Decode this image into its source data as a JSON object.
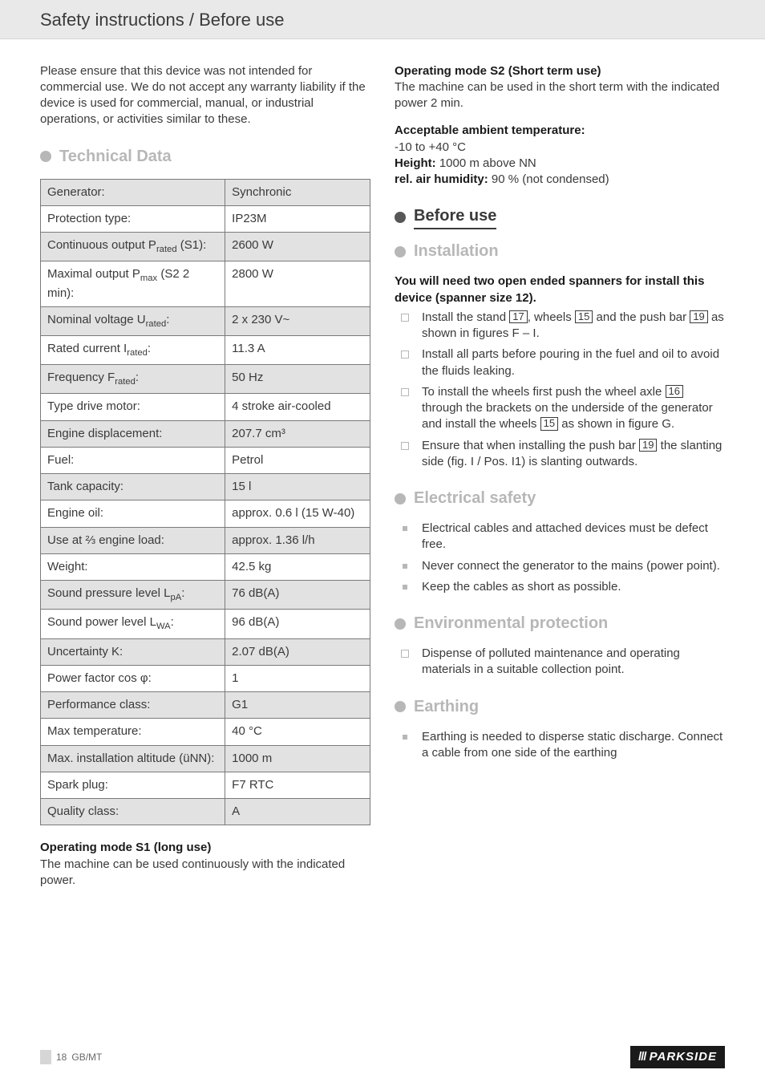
{
  "header_title": "Safety instructions / Before use",
  "intro_para": "Please ensure that this device was not intended for commercial use. We do not accept any warranty liability if the device is used for commercial, manual, or industrial operations, or activities similar to these.",
  "tech_data_heading": "Technical Data",
  "spec_table": {
    "rows": [
      {
        "label_html": "Generator:",
        "value": "Synchronic"
      },
      {
        "label_html": "Protection type:",
        "value": "IP23M"
      },
      {
        "label_html": "Continuous output P<sub>rated</sub> (S1):",
        "value": "2600 W"
      },
      {
        "label_html": "Maximal output P<sub>max</sub> (S2 2 min):",
        "value": "2800 W"
      },
      {
        "label_html": "Nominal voltage U<sub>rated</sub>:",
        "value": "2 x 230 V~"
      },
      {
        "label_html": "Rated current I<sub>rated</sub>:",
        "value": "11.3 A"
      },
      {
        "label_html": "Frequency F<sub>rated</sub>:",
        "value": "50 Hz"
      },
      {
        "label_html": "Type drive motor:",
        "value": "4 stroke air-cooled"
      },
      {
        "label_html": "Engine displacement:",
        "value": "207.7 cm³"
      },
      {
        "label_html": "Fuel:",
        "value": "Petrol"
      },
      {
        "label_html": "Tank capacity:",
        "value": "15 l"
      },
      {
        "label_html": "Engine oil:",
        "value": "approx. 0.6 l (15 W-40)"
      },
      {
        "label_html": "Use at ⅔ engine load:",
        "value": "approx. 1.36 l/h"
      },
      {
        "label_html": "Weight:",
        "value": "42.5 kg"
      },
      {
        "label_html": "Sound pressure level L<sub>pA</sub>:",
        "value": "76 dB(A)"
      },
      {
        "label_html": "Sound power level L<sub>WA</sub>:",
        "value": "96 dB(A)"
      },
      {
        "label_html": "Uncertainty K:",
        "value": "2.07 dB(A)"
      },
      {
        "label_html": "Power factor cos φ:",
        "value": "1"
      },
      {
        "label_html": "Performance class:",
        "value": "G1"
      },
      {
        "label_html": "Max temperature:",
        "value": "40 °C"
      },
      {
        "label_html": "Max. installation altitude (üNN):",
        "value": "1000 m"
      },
      {
        "label_html": "Spark plug:",
        "value": "F7 RTC"
      },
      {
        "label_html": "Quality class:",
        "value": "A"
      }
    ]
  },
  "op_s1_title": "Operating mode S1 (long use)",
  "op_s1_body": "The machine can be used continuously with the indicated power.",
  "op_s2_title": "Operating mode S2 (Short term use)",
  "op_s2_body": "The machine can be used in the short term with the indicated power 2 min.",
  "ambient_title": "Acceptable ambient temperature:",
  "ambient_temp": "-10 to +40 °C",
  "height_label": "Height:",
  "height_value": " 1000 m above NN",
  "humidity_label": "rel. air humidity:",
  "humidity_value": " 90 % (not condensed)",
  "before_use_heading": "Before use",
  "installation_heading": "Installation",
  "spanner_note": "You will need two open ended spanners for install this device (spanner size 12).",
  "install_items": [
    {
      "html": "Install the stand <span class=\"numbox\">17</span>, wheels <span class=\"numbox\">15</span> and the push bar <span class=\"numbox\">19</span> as shown in figures F – I."
    },
    {
      "html": "Install all parts before pouring in the fuel and oil to avoid the fluids leaking."
    },
    {
      "html": "To install the wheels first push the wheel axle <span class=\"numbox\">16</span> through the brackets on the underside of the generator and install the wheels <span class=\"numbox\">15</span> as shown in figure G."
    },
    {
      "html": "Ensure that when installing the push bar <span class=\"numbox\">19</span> the slanting side (fig. I / Pos. I1) is slanting outwards."
    }
  ],
  "elec_heading": "Electrical safety",
  "elec_items": [
    "Electrical cables and attached devices must be defect free.",
    "Never connect the generator to the mains (power point).",
    "Keep the cables as short as possible."
  ],
  "env_heading": "Environmental protection",
  "env_items": [
    "Dispense of polluted maintenance and operating materials in a suitable collection point."
  ],
  "earth_heading": "Earthing",
  "earth_items": [
    "Earthing is needed to disperse static discharge. Connect a cable from one side of the earthing"
  ],
  "page_number": "18",
  "page_region": "GB/MT",
  "brand": "PARKSIDE"
}
